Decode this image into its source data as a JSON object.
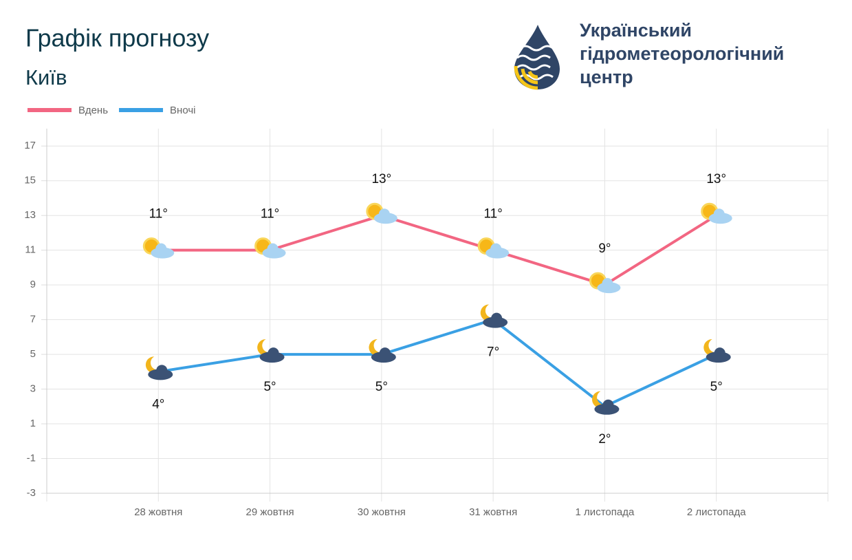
{
  "organization": [
    "Український",
    "гідрометеорологічний",
    "центр"
  ],
  "chart_data": {
    "type": "line",
    "title": "Графік прогнозу",
    "subtitle": "Київ",
    "categories": [
      null,
      "28 жовтня",
      "29 жовтня",
      "30 жовтня",
      "31 жовтня",
      "1 листопада",
      "2 листопада",
      null
    ],
    "series": [
      {
        "name": "Вдень",
        "color": "#f26682",
        "values": [
          null,
          11,
          11,
          13,
          11,
          9,
          13,
          null
        ],
        "value_labels": [
          null,
          "11°",
          "11°",
          "13°",
          "11°",
          "9°",
          "13°",
          null
        ]
      },
      {
        "name": "Вночі",
        "color": "#3aa0e4",
        "values": [
          null,
          4,
          5,
          5,
          7,
          2,
          5,
          null
        ],
        "value_labels": [
          null,
          "4°",
          "5°",
          "5°",
          "7°",
          "2°",
          "5°",
          null
        ]
      }
    ],
    "ylim": [
      -3,
      18
    ],
    "yticks": [
      -3,
      -1,
      1,
      3,
      5,
      7,
      9,
      11,
      13,
      15,
      17
    ],
    "grid": true,
    "legend": "top-left"
  }
}
